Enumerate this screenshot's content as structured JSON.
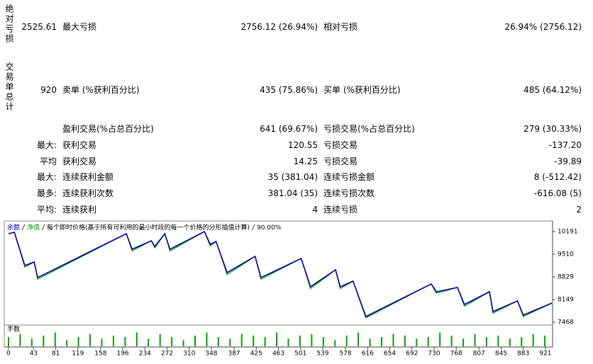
{
  "stats": {
    "side_labels": [
      "绝对亏损",
      "交易单总计"
    ],
    "rows": [
      [
        "2525.61",
        "最大亏损",
        "2756.12 (26.94%)",
        "相对亏损",
        "26.94% (2756.12)"
      ],
      [
        "920",
        "卖单 (%获利百分比)",
        "435 (75.86%)",
        "买单 (%获利百分比)",
        "485 (64.12%)"
      ],
      [
        null,
        "盈利交易(%占总百分比)",
        "641 (69.67%)",
        "亏损交易(%占总百分比)",
        "279 (30.33%)"
      ],
      [
        "最大:",
        "获利交易",
        "120.55",
        "亏损交易",
        "-137.20"
      ],
      [
        "平均",
        "获利交易",
        "14.25",
        "亏损交易",
        "-39.89"
      ],
      [
        "最大:",
        "连续获利金额",
        "35 (381.04)",
        "连续亏损金额",
        "8 (-512.42)"
      ],
      [
        "最多:",
        "连续获利次数",
        "381.04 (35)",
        "连续亏损次数",
        "-616.08 (5)"
      ],
      [
        "平均:",
        "连续获利",
        "4",
        "连续亏损",
        "2"
      ]
    ]
  },
  "chart_data": {
    "type": "line",
    "legend_note": "每个即时价格(基于所有可利用的最小时段的每一个价格的分形插值计算)",
    "quality": "90.00%",
    "x": [
      0,
      10,
      28,
      44,
      50,
      202,
      212,
      245,
      251,
      268,
      277,
      336,
      346,
      356,
      375,
      423,
      433,
      502,
      518,
      561,
      569,
      591,
      613,
      725,
      734,
      770,
      782,
      825,
      831,
      873,
      883,
      932
    ],
    "series": [
      {
        "name": "净值",
        "color": "#00a000",
        "values": [
          10127,
          10170,
          9120,
          9276,
          8760,
          10127,
          9610,
          9914,
          9700,
          10127,
          9610,
          10191,
          9760,
          9893,
          8900,
          9447,
          8760,
          9383,
          8480,
          9042,
          8480,
          8702,
          7600,
          8617,
          8340,
          8511,
          7950,
          8383,
          7740,
          8107,
          7640,
          8043
        ]
      },
      {
        "name": "余额",
        "color": "#0000a0",
        "values": [
          10127,
          10170,
          9170,
          9276,
          8808,
          10127,
          9659,
          9914,
          9744,
          10127,
          9659,
          10191,
          9808,
          9893,
          8957,
          9447,
          8808,
          9383,
          8532,
          9042,
          8532,
          8702,
          7639,
          8617,
          8383,
          8511,
          8000,
          8383,
          7787,
          8107,
          7681,
          8043
        ]
      }
    ],
    "xlim": [
      0,
      932
    ],
    "xticks": [
      0,
      43,
      81,
      119,
      158,
      196,
      234,
      272,
      310,
      348,
      387,
      425,
      463,
      501,
      539,
      578,
      616,
      654,
      692,
      730,
      768,
      807,
      845,
      883,
      921
    ],
    "ylim": [
      7404,
      10446
    ],
    "yticks": [
      7468,
      8149,
      8829,
      9510,
      10191
    ],
    "volume": {
      "label": "手数",
      "color": "#00a000",
      "ylim": [
        0,
        12
      ],
      "x": [
        0,
        20,
        40,
        60,
        80,
        100,
        120,
        140,
        160,
        180,
        200,
        220,
        240,
        260,
        280,
        300,
        320,
        340,
        360,
        380,
        400,
        420,
        440,
        460,
        480,
        500,
        520,
        540,
        560,
        580,
        600,
        620,
        640,
        660,
        680,
        700,
        720,
        740,
        760,
        780,
        800,
        820,
        840,
        860,
        880,
        900,
        920
      ],
      "values": [
        6,
        8,
        5,
        7,
        9,
        4,
        6,
        8,
        5,
        7,
        6,
        9,
        5,
        8,
        6,
        4,
        7,
        9,
        6,
        5,
        8,
        7,
        6,
        9,
        5,
        7,
        8,
        6,
        4,
        7,
        9,
        5,
        6,
        8,
        7,
        5,
        6,
        9,
        7,
        5,
        8,
        6,
        7,
        5,
        6,
        8,
        7
      ]
    }
  }
}
